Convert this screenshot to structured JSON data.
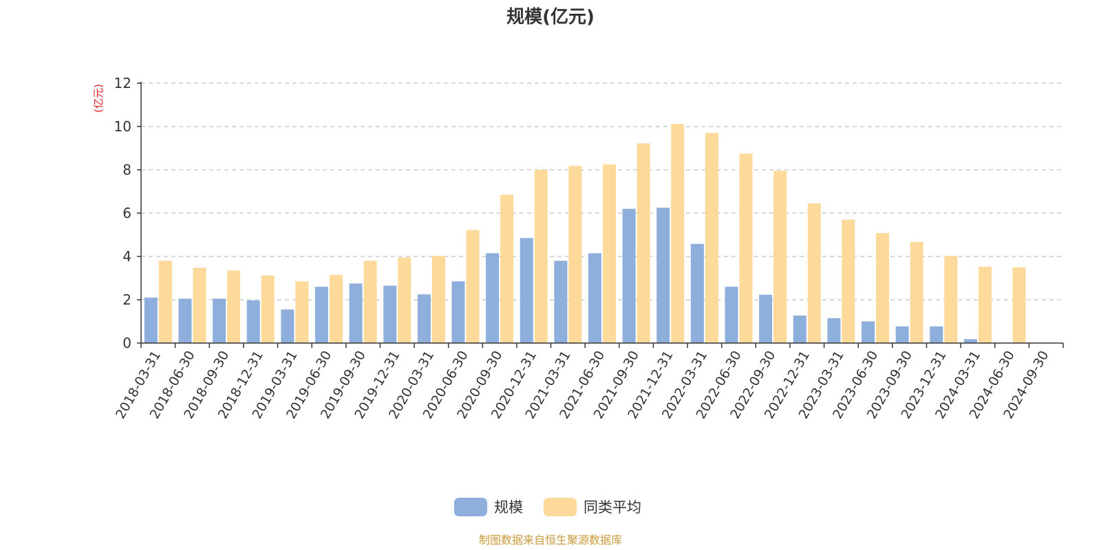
{
  "chart_data": {
    "type": "bar",
    "title": "规模(亿元)",
    "ylabel": "(亿元)",
    "xlabel": "",
    "ylim": [
      0,
      12
    ],
    "yticks": [
      0,
      2,
      4,
      6,
      8,
      10,
      12
    ],
    "grid": true,
    "legend_position": "bottom-center",
    "categories": [
      "2018-03-31",
      "2018-06-30",
      "2018-09-30",
      "2018-12-31",
      "2019-03-31",
      "2019-06-30",
      "2019-09-30",
      "2019-12-31",
      "2020-03-31",
      "2020-06-30",
      "2020-09-30",
      "2020-12-31",
      "2021-03-31",
      "2021-06-30",
      "2021-09-30",
      "2021-12-31",
      "2022-03-31",
      "2022-06-30",
      "2022-09-30",
      "2022-12-31",
      "2023-03-31",
      "2023-06-30",
      "2023-09-30",
      "2023-12-31",
      "2024-03-31",
      "2024-06-30",
      "2024-09-30"
    ],
    "series": [
      {
        "name": "规模",
        "color": "#8eaedb",
        "values": [
          2.1,
          2.05,
          2.05,
          1.97,
          1.55,
          2.6,
          2.75,
          2.65,
          2.25,
          2.85,
          4.15,
          4.85,
          3.8,
          4.15,
          6.2,
          6.25,
          4.58,
          2.6,
          2.23,
          1.27,
          1.15,
          1.0,
          0.77,
          0.77,
          0.18,
          0,
          0
        ]
      },
      {
        "name": "同类平均",
        "color": "#fdd99a",
        "values": [
          3.8,
          3.48,
          3.35,
          3.12,
          2.85,
          3.15,
          3.8,
          3.95,
          4.02,
          5.22,
          6.85,
          8.0,
          8.18,
          8.25,
          9.22,
          10.12,
          9.7,
          8.75,
          7.95,
          6.45,
          5.7,
          5.08,
          4.67,
          4.02,
          3.52,
          3.5,
          0
        ]
      }
    ],
    "source": "制图数据来自恒生聚源数据库"
  }
}
